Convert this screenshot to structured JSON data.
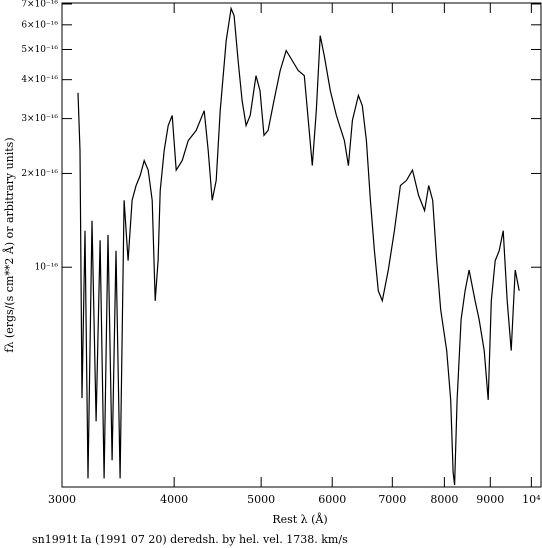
{
  "chart_data": {
    "type": "line",
    "x_label": "Rest λ (Å)",
    "y_label": "fλ (ergs/(s cm**2 Å) or arbitrary units)",
    "caption": "sn1991t Ia (1991 07 20) deredsh. by hel. vel.  1738. km/s",
    "xscale": "log",
    "yscale": "log",
    "color": "#000000",
    "xlim": [
      3000,
      10250
    ],
    "ylim": [
      1.97e-17,
      7.05e-16
    ],
    "xticks": [
      3000,
      4000,
      5000,
      6000,
      7000,
      8000,
      9000,
      {
        "value": 10000,
        "label": "10⁴"
      }
    ],
    "yticks": [
      {
        "value": 1e-16,
        "label": "10⁻¹⁶"
      },
      {
        "value": 2e-16,
        "label": "2×10⁻¹⁶"
      },
      {
        "value": 3e-16,
        "label": "3×10⁻¹⁶"
      },
      {
        "value": 4e-16,
        "label": "4×10⁻¹⁶"
      },
      {
        "value": 5e-16,
        "label": "5×10⁻¹⁶"
      },
      {
        "value": 6e-16,
        "label": "6×10⁻¹⁶"
      },
      {
        "value": 7e-16,
        "label": "7×10⁻¹⁶"
      }
    ],
    "x": [
      3126,
      3142,
      3158,
      3182,
      3207,
      3240,
      3274,
      3308,
      3342,
      3376,
      3411,
      3446,
      3482,
      3518,
      3554,
      3591,
      3628,
      3666,
      3704,
      3742,
      3781,
      3810,
      3839,
      3859,
      3899,
      3939,
      3980,
      4021,
      4083,
      4147,
      4233,
      4320,
      4365,
      4410,
      4455,
      4501,
      4571,
      4629,
      4665,
      4713,
      4761,
      4811,
      4861,
      4935,
      4985,
      5037,
      5090,
      5168,
      5250,
      5332,
      5415,
      5499,
      5585,
      5643,
      5701,
      5760,
      5818,
      5879,
      5971,
      6064,
      6191,
      6254,
      6319,
      6417,
      6482,
      6550,
      6617,
      6685,
      6753,
      6822,
      6929,
      7037,
      7147,
      7259,
      7372,
      7488,
      7605,
      7684,
      7763,
      7843,
      7924,
      8048,
      8131,
      8181,
      8212,
      8265,
      8350,
      8437,
      8524,
      8657,
      8746,
      8860,
      8952,
      9022,
      9115,
      9208,
      9303,
      9399,
      9496,
      9593,
      9692
    ],
    "values": [
      3.63e-16,
      2.37e-16,
      3.8e-17,
      1.31e-16,
      2.1e-17,
      1.41e-16,
      3.2e-17,
      1.22e-16,
      2.1e-17,
      1.27e-16,
      2.4e-17,
      1.13e-16,
      2.1e-17,
      1.64e-16,
      1.05e-16,
      1.64e-16,
      1.83e-16,
      1.97e-16,
      2.2e-16,
      2.05e-16,
      1.64e-16,
      7.8e-17,
      1.05e-16,
      1.76e-16,
      2.37e-16,
      2.85e-16,
      3.07e-16,
      2.05e-16,
      2.2e-16,
      2.55e-16,
      2.75e-16,
      3.18e-16,
      2.37e-16,
      1.64e-16,
      1.9e-16,
      3.18e-16,
      5.34e-16,
      6.77e-16,
      6.42e-16,
      4.61e-16,
      3.43e-16,
      2.85e-16,
      3.07e-16,
      4.12e-16,
      3.69e-16,
      2.65e-16,
      2.75e-16,
      3.43e-16,
      4.28e-16,
      4.96e-16,
      4.61e-16,
      4.28e-16,
      4.12e-16,
      2.96e-16,
      2.12e-16,
      3.18e-16,
      5.54e-16,
      4.77e-16,
      3.69e-16,
      3.07e-16,
      2.55e-16,
      2.12e-16,
      2.96e-16,
      3.56e-16,
      3.3e-16,
      2.55e-16,
      1.64e-16,
      1.13e-16,
      8.4e-17,
      7.8e-17,
      9.8e-17,
      1.31e-16,
      1.83e-16,
      1.9e-16,
      2.05e-16,
      1.7e-16,
      1.52e-16,
      1.83e-16,
      1.64e-16,
      1.05e-16,
      7.3e-17,
      5.4e-17,
      3.75e-17,
      2.2e-17,
      2e-17,
      3.75e-17,
      6.8e-17,
      8.4e-17,
      9.8e-17,
      7.8e-17,
      6.8e-17,
      5.4e-17,
      3.75e-17,
      7.8e-17,
      1.05e-16,
      1.13e-16,
      1.31e-16,
      7.8e-17,
      5.4e-17,
      9.8e-17,
      8.4e-17
    ]
  }
}
